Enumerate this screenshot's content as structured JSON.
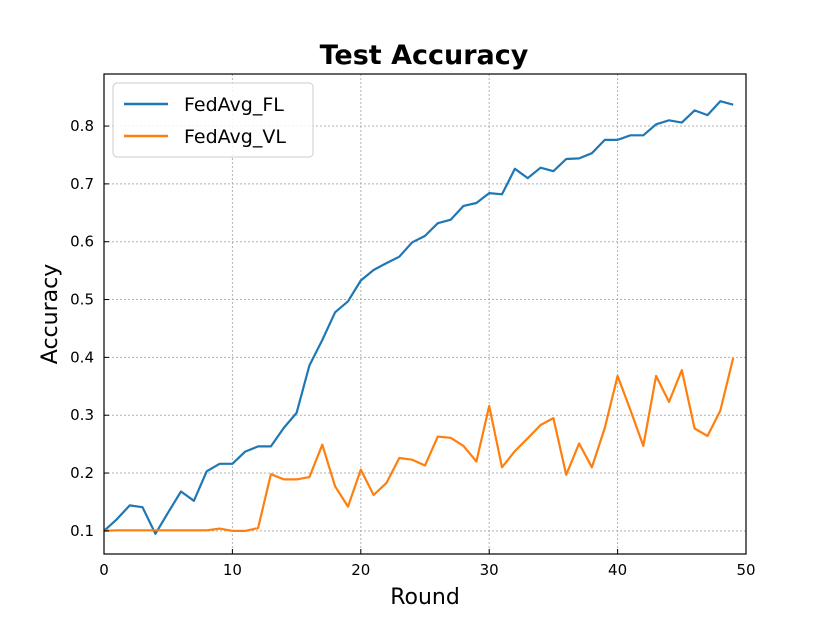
{
  "chart_data": {
    "type": "line",
    "title": "Test Accuracy",
    "xlabel": "Round",
    "ylabel": "Accuracy",
    "xlim": [
      0,
      50
    ],
    "ylim": [
      0.06,
      0.89
    ],
    "xticks": [
      0,
      10,
      20,
      30,
      40,
      50
    ],
    "yticks": [
      0.1,
      0.2,
      0.3,
      0.4,
      0.5,
      0.6,
      0.7,
      0.8
    ],
    "grid": true,
    "legend_position": "top-left",
    "x": [
      0,
      1,
      2,
      3,
      4,
      5,
      6,
      7,
      8,
      9,
      10,
      11,
      12,
      13,
      14,
      15,
      16,
      17,
      18,
      19,
      20,
      21,
      22,
      23,
      24,
      25,
      26,
      27,
      28,
      29,
      30,
      31,
      32,
      33,
      34,
      35,
      36,
      37,
      38,
      39,
      40,
      41,
      42,
      43,
      44,
      45,
      46,
      47,
      48,
      49
    ],
    "series": [
      {
        "name": "FedAvg_FL",
        "color": "#1f77b4",
        "values": [
          0.1,
          0.12,
          0.144,
          0.141,
          0.095,
          0.132,
          0.168,
          0.152,
          0.203,
          0.216,
          0.216,
          0.237,
          0.246,
          0.246,
          0.278,
          0.304,
          0.386,
          0.43,
          0.478,
          0.497,
          0.533,
          0.551,
          0.563,
          0.574,
          0.599,
          0.61,
          0.632,
          0.638,
          0.662,
          0.667,
          0.684,
          0.682,
          0.726,
          0.71,
          0.728,
          0.722,
          0.743,
          0.744,
          0.753,
          0.776,
          0.776,
          0.784,
          0.784,
          0.803,
          0.81,
          0.806,
          0.827,
          0.819,
          0.843,
          0.837
        ]
      },
      {
        "name": "FedAvg_VL",
        "color": "#ff7f0e",
        "values": [
          0.1,
          0.101,
          0.101,
          0.101,
          0.101,
          0.101,
          0.101,
          0.101,
          0.101,
          0.104,
          0.1,
          0.1,
          0.105,
          0.198,
          0.189,
          0.189,
          0.193,
          0.249,
          0.177,
          0.142,
          0.206,
          0.162,
          0.183,
          0.226,
          0.223,
          0.213,
          0.263,
          0.261,
          0.247,
          0.22,
          0.316,
          0.21,
          0.238,
          0.26,
          0.283,
          0.295,
          0.197,
          0.251,
          0.21,
          0.278,
          0.368,
          0.309,
          0.247,
          0.368,
          0.323,
          0.378,
          0.277,
          0.264,
          0.308,
          0.399
        ]
      }
    ]
  }
}
